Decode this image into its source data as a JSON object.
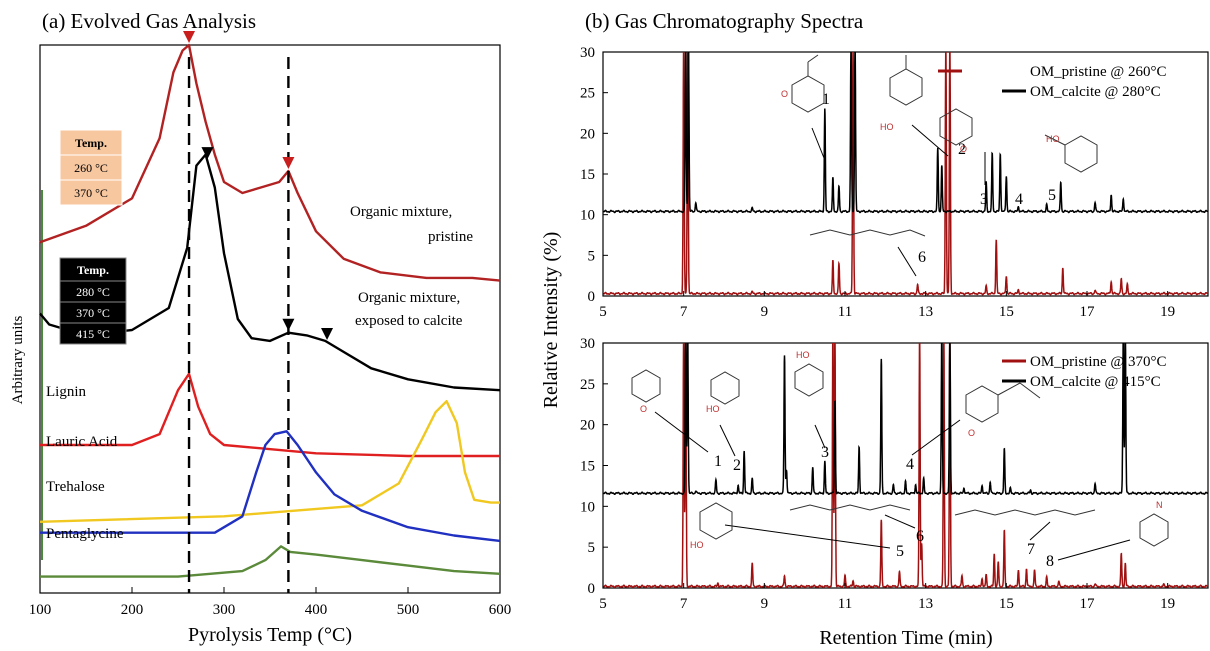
{
  "chart_data": [
    {
      "panel": "a",
      "type": "line",
      "title": "(a) Evolved Gas Analysis",
      "xlabel": "Pyrolysis Temp (°C)",
      "ylabel": "Arbitrary units",
      "xlim": [
        100,
        600
      ],
      "xticks": [
        "100",
        "200",
        "300",
        "400",
        "500",
        "600"
      ],
      "dashed_lines_x": [
        262,
        370
      ],
      "series": [
        {
          "name": "Organic mixture, pristine",
          "color": "#b22222",
          "points": [
            [
              100,
              0.64
            ],
            [
              150,
              0.67
            ],
            [
              200,
              0.72
            ],
            [
              230,
              0.83
            ],
            [
              245,
              0.95
            ],
            [
              255,
              0.99
            ],
            [
              262,
              1.0
            ],
            [
              270,
              0.93
            ],
            [
              280,
              0.86
            ],
            [
              290,
              0.8
            ],
            [
              300,
              0.75
            ],
            [
              320,
              0.73
            ],
            [
              340,
              0.74
            ],
            [
              360,
              0.75
            ],
            [
              370,
              0.77
            ],
            [
              380,
              0.73
            ],
            [
              400,
              0.66
            ],
            [
              430,
              0.61
            ],
            [
              470,
              0.585
            ],
            [
              520,
              0.575
            ],
            [
              570,
              0.575
            ],
            [
              600,
              0.57
            ]
          ]
        },
        {
          "name": "Organic mixture, exposed to calcite",
          "color": "#000000",
          "points": [
            [
              100,
              0.51
            ],
            [
              110,
              0.49
            ],
            [
              150,
              0.47
            ],
            [
              200,
              0.48
            ],
            [
              240,
              0.52
            ],
            [
              260,
              0.63
            ],
            [
              270,
              0.78
            ],
            [
              280,
              0.8
            ],
            [
              290,
              0.74
            ],
            [
              300,
              0.62
            ],
            [
              315,
              0.5
            ],
            [
              330,
              0.465
            ],
            [
              350,
              0.46
            ],
            [
              370,
              0.475
            ],
            [
              390,
              0.47
            ],
            [
              410,
              0.46
            ],
            [
              430,
              0.44
            ],
            [
              460,
              0.41
            ],
            [
              500,
              0.39
            ],
            [
              550,
              0.375
            ],
            [
              600,
              0.37
            ]
          ]
        },
        {
          "name": "Lignin",
          "color": "#e02020",
          "points": [
            [
              100,
              0.27
            ],
            [
              200,
              0.27
            ],
            [
              230,
              0.29
            ],
            [
              250,
              0.37
            ],
            [
              262,
              0.4
            ],
            [
              272,
              0.34
            ],
            [
              285,
              0.29
            ],
            [
              300,
              0.27
            ],
            [
              400,
              0.255
            ],
            [
              500,
              0.25
            ],
            [
              600,
              0.25
            ]
          ]
        },
        {
          "name": "Lauric Acid",
          "color": "#f0c820",
          "points": [
            [
              100,
              0.13
            ],
            [
              300,
              0.14
            ],
            [
              450,
              0.16
            ],
            [
              490,
              0.2
            ],
            [
              515,
              0.28
            ],
            [
              530,
              0.33
            ],
            [
              542,
              0.35
            ],
            [
              553,
              0.31
            ],
            [
              562,
              0.22
            ],
            [
              572,
              0.17
            ],
            [
              590,
              0.165
            ],
            [
              600,
              0.165
            ]
          ]
        },
        {
          "name": "Trehalose",
          "color": "#2030c0",
          "points": [
            [
              100,
              0.11
            ],
            [
              290,
              0.11
            ],
            [
              320,
              0.14
            ],
            [
              335,
              0.22
            ],
            [
              345,
              0.27
            ],
            [
              355,
              0.29
            ],
            [
              368,
              0.295
            ],
            [
              380,
              0.27
            ],
            [
              400,
              0.22
            ],
            [
              420,
              0.18
            ],
            [
              450,
              0.15
            ],
            [
              500,
              0.12
            ],
            [
              550,
              0.105
            ],
            [
              600,
              0.095
            ]
          ]
        },
        {
          "name": "Pentaglycine",
          "color": "#5a8a3a",
          "points": [
            [
              100,
              0.03
            ],
            [
              250,
              0.03
            ],
            [
              320,
              0.04
            ],
            [
              345,
              0.06
            ],
            [
              362,
              0.085
            ],
            [
              372,
              0.075
            ],
            [
              400,
              0.07
            ],
            [
              450,
              0.06
            ],
            [
              500,
              0.05
            ],
            [
              550,
              0.04
            ],
            [
              600,
              0.035
            ]
          ]
        }
      ],
      "annotations": [
        "Organic mixture,",
        "pristine",
        "Organic mixture,",
        "exposed to calcite",
        "Lignin",
        "Lauric Acid",
        "Trehalose",
        "Pentaglycine"
      ],
      "temp_tables": [
        {
          "header": "Temp.",
          "rows": [
            "260 °C",
            "370 °C"
          ],
          "bg": "#f7c7a0"
        },
        {
          "header": "Temp.",
          "rows": [
            "280 °C",
            "370 °C",
            "415 °C"
          ],
          "bg": "#000000"
        }
      ],
      "markers_red_x": [
        262,
        370
      ],
      "markers_black_x": [
        282,
        370,
        412
      ]
    },
    {
      "panel": "b",
      "type": "line",
      "title": "(b) Gas Chromatography Spectra",
      "xlabel": "Retention Time (min)",
      "ylabel": "Relative Intensity (%)",
      "xticks": [
        "5",
        "7",
        "9",
        "11",
        "13",
        "15",
        "17",
        "19"
      ],
      "yticks": [
        "0",
        "5",
        "10",
        "15",
        "20",
        "25",
        "30"
      ],
      "subplots": [
        {
          "xlim": [
            5,
            20
          ],
          "ylim": [
            0,
            30
          ],
          "legend": [
            "OM_pristine @ 260°C",
            "OM_calcite @ 280°C"
          ],
          "series": [
            {
              "name": "OM_pristine @ 260°C",
              "color": "#a01010",
              "baseline": 0.3,
              "peaks": [
                [
                  7.0,
                  31
                ],
                [
                  7.1,
                  31
                ],
                [
                  8.7,
                  0.5
                ],
                [
                  10.7,
                  4.3
                ],
                [
                  10.85,
                  4.0
                ],
                [
                  11.2,
                  31
                ],
                [
                  12.8,
                  1.4
                ],
                [
                  13.5,
                  31
                ],
                [
                  13.6,
                  31
                ],
                [
                  14.5,
                  1.2
                ],
                [
                  14.75,
                  7.0
                ],
                [
                  15.0,
                  2.5
                ],
                [
                  15.3,
                  0.8
                ],
                [
                  16.4,
                  3.5
                ],
                [
                  17.2,
                  0.7
                ],
                [
                  17.6,
                  1.8
                ],
                [
                  17.85,
                  2.1
                ],
                [
                  18.0,
                  1.4
                ]
              ]
            },
            {
              "name": "OM_calcite @ 280°C",
              "color": "#000000",
              "baseline": 10.4,
              "peaks": [
                [
                  7.05,
                  31
                ],
                [
                  7.12,
                  31
                ],
                [
                  7.3,
                  11.5
                ],
                [
                  8.7,
                  10.8
                ],
                [
                  10.5,
                  23
                ],
                [
                  10.7,
                  14.5
                ],
                [
                  10.85,
                  13.5
                ],
                [
                  11.15,
                  31
                ],
                [
                  11.25,
                  31
                ],
                [
                  13.3,
                  18.2
                ],
                [
                  13.4,
                  16.0
                ],
                [
                  14.5,
                  14.0
                ],
                [
                  14.65,
                  17.5
                ],
                [
                  14.85,
                  17.5
                ],
                [
                  15.0,
                  14.8
                ],
                [
                  15.3,
                  11.0
                ],
                [
                  16.0,
                  11.2
                ],
                [
                  16.35,
                  14.0
                ],
                [
                  17.2,
                  11.5
                ],
                [
                  17.6,
                  12.5
                ],
                [
                  17.9,
                  12.0
                ]
              ]
            }
          ],
          "peak_labels": [
            "1",
            "2",
            "3",
            "4",
            "5",
            "6"
          ]
        },
        {
          "xlim": [
            5,
            20
          ],
          "ylim": [
            0,
            30
          ],
          "legend": [
            "OM_pristine @ 370°C",
            "OM_calcite @ 415°C"
          ],
          "series": [
            {
              "name": "OM_pristine @ 370°C",
              "color": "#a01010",
              "baseline": 0.2,
              "peaks": [
                [
                  7.0,
                  31
                ],
                [
                  7.05,
                  31
                ],
                [
                  7.85,
                  0.6
                ],
                [
                  8.7,
                  3.0
                ],
                [
                  9.5,
                  1.5
                ],
                [
                  10.7,
                  31
                ],
                [
                  10.75,
                  31
                ],
                [
                  11.0,
                  1.5
                ],
                [
                  11.2,
                  0.9
                ],
                [
                  11.9,
                  8.3
                ],
                [
                  12.35,
                  2.0
                ],
                [
                  12.85,
                  31
                ],
                [
                  12.9,
                  5.5
                ],
                [
                  13.45,
                  31
                ],
                [
                  13.6,
                  31
                ],
                [
                  13.9,
                  1.5
                ],
                [
                  14.4,
                  1.2
                ],
                [
                  14.5,
                  1.6
                ],
                [
                  14.7,
                  4.2
                ],
                [
                  14.8,
                  3.2
                ],
                [
                  14.95,
                  7.0
                ],
                [
                  15.3,
                  2.2
                ],
                [
                  15.5,
                  2.4
                ],
                [
                  15.7,
                  2.2
                ],
                [
                  16.0,
                  1.3
                ],
                [
                  16.3,
                  0.8
                ],
                [
                  17.2,
                  0.5
                ],
                [
                  17.85,
                  4.2
                ],
                [
                  17.95,
                  3.0
                ],
                [
                  18.9,
                  0.4
                ]
              ]
            },
            {
              "name": "OM_calcite @ 415°C",
              "color": "#000000",
              "baseline": 11.6,
              "peaks": [
                [
                  7.05,
                  31
                ],
                [
                  7.1,
                  31
                ],
                [
                  7.3,
                  11.9
                ],
                [
                  7.8,
                  13.2
                ],
                [
                  8.35,
                  12.6
                ],
                [
                  8.5,
                  16.8
                ],
                [
                  8.7,
                  13.4
                ],
                [
                  9.5,
                  28.5
                ],
                [
                  9.55,
                  14.5
                ],
                [
                  10.2,
                  14.8
                ],
                [
                  10.5,
                  15.5
                ],
                [
                  10.75,
                  23.0
                ],
                [
                  11.35,
                  17.3
                ],
                [
                  11.9,
                  28.0
                ],
                [
                  12.2,
                  12.6
                ],
                [
                  12.5,
                  13.0
                ],
                [
                  12.75,
                  12.7
                ],
                [
                  12.95,
                  13.4
                ],
                [
                  13.4,
                  31
                ],
                [
                  13.6,
                  31
                ],
                [
                  13.95,
                  12.3
                ],
                [
                  14.4,
                  12.6
                ],
                [
                  14.6,
                  13.0
                ],
                [
                  14.95,
                  17.0
                ],
                [
                  15.1,
                  12.2
                ],
                [
                  15.6,
                  12.0
                ],
                [
                  17.2,
                  12.8
                ],
                [
                  17.9,
                  31
                ],
                [
                  17.95,
                  31
                ]
              ]
            }
          ],
          "peak_labels": [
            "1",
            "2",
            "3",
            "4",
            "5",
            "6",
            "7",
            "8"
          ]
        }
      ]
    }
  ]
}
